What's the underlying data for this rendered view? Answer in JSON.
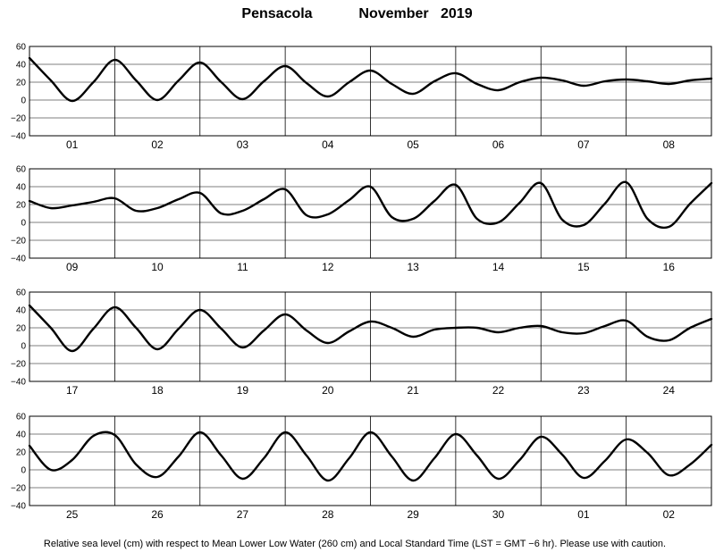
{
  "title": {
    "station": "Pensacola",
    "month_year": "November   2019"
  },
  "footnote": "Relative sea level (cm) with respect to Mean Lower Low Water (260 cm) and Local Standard Time (LST = GMT −6 hr). Please use with caution.",
  "chart_data": [
    {
      "type": "line",
      "ylim": [
        -40,
        60
      ],
      "yticks": [
        "60",
        "40",
        "20",
        "0",
        "−20",
        "−40"
      ],
      "grid": true,
      "categories": [
        "01",
        "02",
        "03",
        "04",
        "05",
        "06",
        "07",
        "08"
      ],
      "x": [
        0,
        0.25,
        0.5,
        0.75,
        1,
        1.25,
        1.5,
        1.75,
        2,
        2.25,
        2.5,
        2.75,
        3,
        3.25,
        3.5,
        3.75,
        4,
        4.25,
        4.5,
        4.75,
        5,
        5.25,
        5.5,
        5.75,
        6,
        6.25,
        6.5,
        6.75,
        7,
        7.25,
        7.5,
        7.75,
        8
      ],
      "values": [
        47,
        22,
        -1,
        20,
        45,
        22,
        0,
        22,
        42,
        20,
        1,
        21,
        38,
        19,
        4,
        20,
        33,
        18,
        7,
        21,
        30,
        18,
        11,
        20,
        25,
        22,
        16,
        21,
        23,
        21,
        18,
        22,
        24
      ]
    },
    {
      "type": "line",
      "ylim": [
        -40,
        60
      ],
      "yticks": [
        "60",
        "40",
        "20",
        "0",
        "−20",
        "−40"
      ],
      "grid": true,
      "categories": [
        "09",
        "10",
        "11",
        "12",
        "13",
        "14",
        "15",
        "16"
      ],
      "x": [
        0,
        0.25,
        0.5,
        0.75,
        1,
        1.25,
        1.5,
        1.75,
        2,
        2.25,
        2.5,
        2.75,
        3,
        3.25,
        3.5,
        3.75,
        4,
        4.25,
        4.5,
        4.75,
        5,
        5.25,
        5.5,
        5.75,
        6,
        6.25,
        6.5,
        6.75,
        7,
        7.25,
        7.5,
        7.75,
        8
      ],
      "values": [
        24,
        16,
        19,
        23,
        27,
        13,
        16,
        26,
        33,
        10,
        13,
        26,
        37,
        8,
        9,
        25,
        40,
        6,
        4,
        24,
        42,
        4,
        0,
        22,
        44,
        3,
        -3,
        21,
        45,
        4,
        -5,
        21,
        44
      ]
    },
    {
      "type": "line",
      "ylim": [
        -40,
        60
      ],
      "yticks": [
        "60",
        "40",
        "20",
        "0",
        "−20",
        "−40"
      ],
      "grid": true,
      "categories": [
        "17",
        "18",
        "19",
        "20",
        "21",
        "22",
        "23",
        "24"
      ],
      "x": [
        0,
        0.25,
        0.5,
        0.75,
        1,
        1.25,
        1.5,
        1.75,
        2,
        2.25,
        2.5,
        2.75,
        3,
        3.25,
        3.5,
        3.75,
        4,
        4.25,
        4.5,
        4.75,
        5,
        5.25,
        5.5,
        5.75,
        6,
        6.25,
        6.5,
        6.75,
        7,
        7.25,
        7.5,
        7.75,
        8
      ],
      "values": [
        45,
        20,
        -6,
        19,
        43,
        20,
        -4,
        19,
        40,
        19,
        -2,
        17,
        35,
        17,
        3,
        16,
        27,
        20,
        10,
        18,
        20,
        20,
        15,
        20,
        22,
        15,
        14,
        22,
        28,
        10,
        6,
        20,
        30
      ]
    },
    {
      "type": "line",
      "ylim": [
        -40,
        60
      ],
      "yticks": [
        "60",
        "40",
        "20",
        "0",
        "−20",
        "−40"
      ],
      "grid": true,
      "categories": [
        "25",
        "26",
        "27",
        "28",
        "29",
        "30",
        "01",
        "02"
      ],
      "x": [
        0,
        0.25,
        0.5,
        0.75,
        1,
        1.25,
        1.5,
        1.75,
        2,
        2.25,
        2.5,
        2.75,
        3,
        3.25,
        3.5,
        3.75,
        4,
        4.25,
        4.5,
        4.75,
        5,
        5.25,
        5.5,
        5.75,
        6,
        6.25,
        6.5,
        6.75,
        7,
        7.25,
        7.5,
        7.75,
        8
      ],
      "values": [
        27,
        0,
        11,
        38,
        39,
        6,
        -8,
        15,
        42,
        16,
        -10,
        13,
        42,
        16,
        -12,
        13,
        42,
        15,
        -12,
        13,
        40,
        16,
        -10,
        11,
        37,
        17,
        -9,
        10,
        34,
        19,
        -6,
        6,
        28
      ]
    }
  ]
}
